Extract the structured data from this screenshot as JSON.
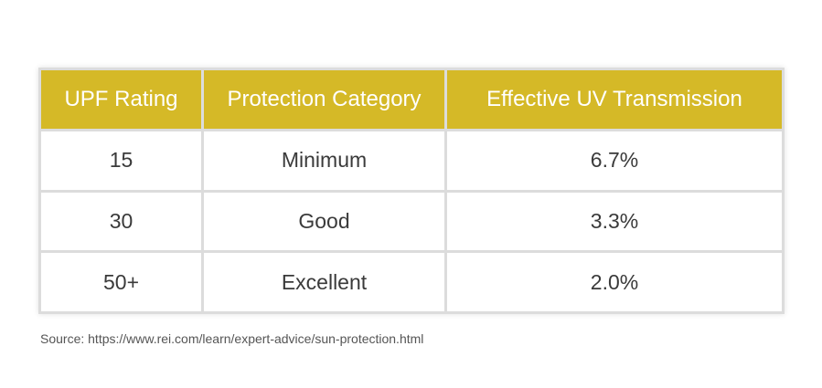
{
  "table": {
    "headers": [
      "UPF Rating",
      "Protection Category",
      "Effective UV Transmission"
    ],
    "rows": [
      [
        "15",
        "Minimum",
        "6.7%"
      ],
      [
        "30",
        "Good",
        "3.3%"
      ],
      [
        "50+",
        "Excellent",
        "2.0%"
      ]
    ]
  },
  "source": "Source: https://www.rei.com/learn/expert-advice/sun-protection.html",
  "colors": {
    "header_background": "#d5b927",
    "header_text": "#ffffff",
    "cell_text": "#3a3a3a",
    "grid_lines": "#dcdcdc"
  }
}
